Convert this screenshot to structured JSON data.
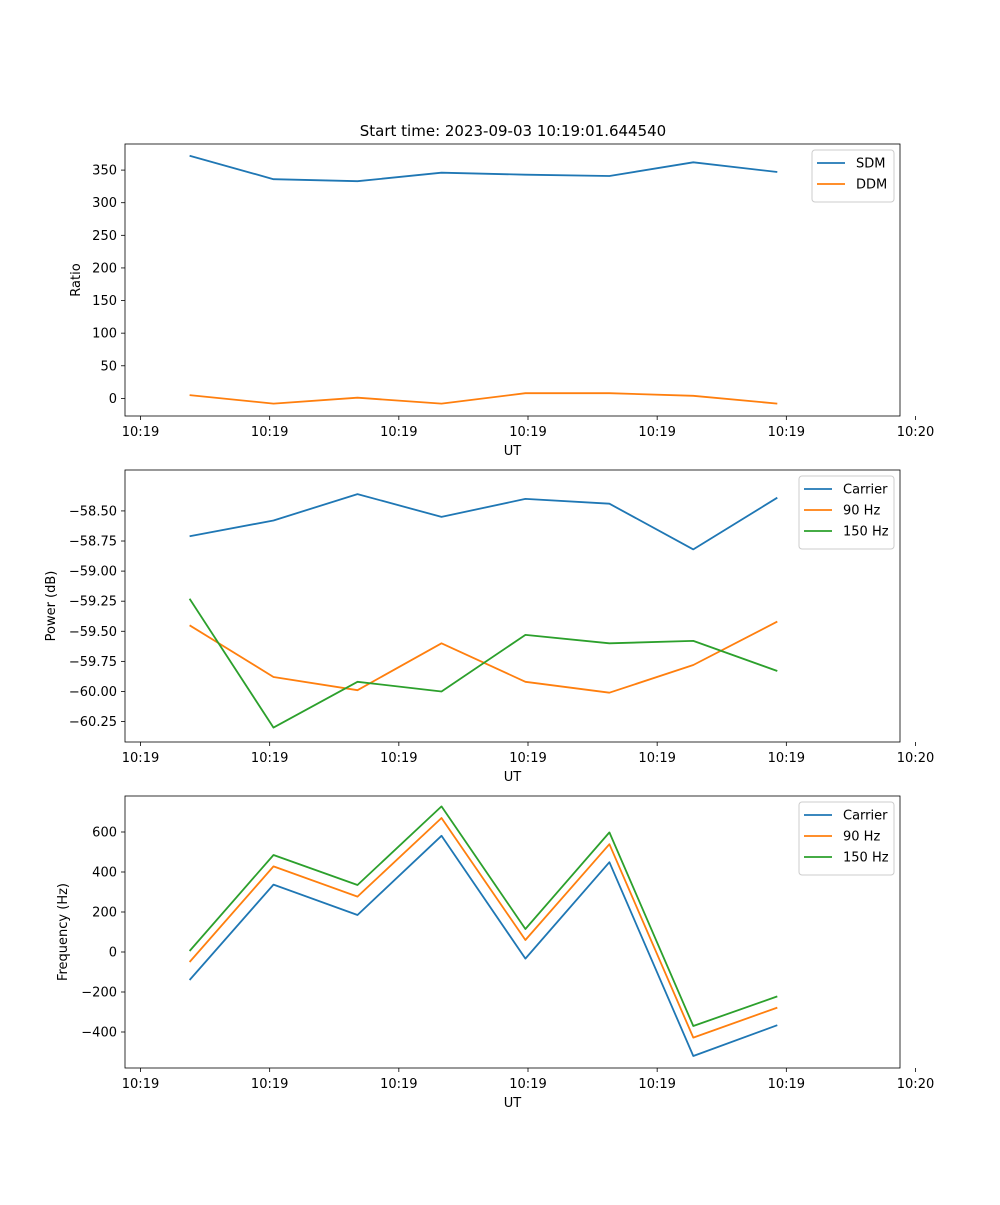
{
  "title": "Start time: 2023-09-03 10:19:01.644540",
  "colors": {
    "blue": "#1f77b4",
    "orange": "#ff7f0e",
    "green": "#2ca02c"
  },
  "chart_data": [
    {
      "type": "line",
      "xlabel": "UT",
      "ylabel": "Ratio",
      "xlim": [
        0,
        6
      ],
      "ylim": [
        -27,
        390
      ],
      "x": [
        0.5,
        1.15,
        1.8,
        2.45,
        3.1,
        3.75,
        4.4,
        5.05
      ],
      "x_ticks": [
        0.12,
        1.12,
        2.12,
        3.12,
        4.12,
        5.12,
        6.12
      ],
      "x_tick_labels": [
        "10:19",
        "10:19",
        "10:19",
        "10:19",
        "10:19",
        "10:19",
        "10:20"
      ],
      "y_ticks": [
        0,
        50,
        100,
        150,
        200,
        250,
        300,
        350
      ],
      "y_tick_labels": [
        "0",
        "50",
        "100",
        "150",
        "200",
        "250",
        "300",
        "350"
      ],
      "legend_position": "top-right",
      "series": [
        {
          "name": "SDM",
          "color": "#1f77b4",
          "values": [
            372,
            336,
            333,
            346,
            343,
            341,
            362,
            347
          ]
        },
        {
          "name": "DDM",
          "color": "#ff7f0e",
          "values": [
            5,
            -8,
            1,
            -8,
            8,
            8,
            4,
            -8
          ]
        }
      ]
    },
    {
      "type": "line",
      "xlabel": "UT",
      "ylabel": "Power (dB)",
      "xlim": [
        0,
        6
      ],
      "ylim": [
        -60.42,
        -58.16
      ],
      "x": [
        0.5,
        1.15,
        1.8,
        2.45,
        3.1,
        3.75,
        4.4,
        5.05
      ],
      "x_ticks": [
        0.12,
        1.12,
        2.12,
        3.12,
        4.12,
        5.12,
        6.12
      ],
      "x_tick_labels": [
        "10:19",
        "10:19",
        "10:19",
        "10:19",
        "10:19",
        "10:19",
        "10:20"
      ],
      "y_ticks": [
        -60.25,
        -60.0,
        -59.75,
        -59.5,
        -59.25,
        -59.0,
        -58.75,
        -58.5
      ],
      "y_tick_labels": [
        "−60.25",
        "−60.00",
        "−59.75",
        "−59.50",
        "−59.25",
        "−59.00",
        "−58.75",
        "−58.50"
      ],
      "legend_position": "top-right",
      "series": [
        {
          "name": "Carrier",
          "color": "#1f77b4",
          "values": [
            -58.71,
            -58.58,
            -58.36,
            -58.55,
            -58.4,
            -58.44,
            -58.82,
            -58.39
          ]
        },
        {
          "name": "90 Hz",
          "color": "#ff7f0e",
          "values": [
            -59.45,
            -59.88,
            -59.99,
            -59.6,
            -59.92,
            -60.01,
            -59.78,
            -59.42
          ]
        },
        {
          "name": "150 Hz",
          "color": "#2ca02c",
          "values": [
            -59.23,
            -60.3,
            -59.92,
            -60.0,
            -59.53,
            -59.6,
            -59.58,
            -59.83
          ]
        }
      ]
    },
    {
      "type": "line",
      "xlabel": "UT",
      "ylabel": "Frequency (Hz)",
      "xlim": [
        0,
        6
      ],
      "ylim": [
        -580,
        780
      ],
      "x": [
        0.5,
        1.15,
        1.8,
        2.45,
        3.1,
        3.75,
        4.4,
        5.05
      ],
      "x_ticks": [
        0.12,
        1.12,
        2.12,
        3.12,
        4.12,
        5.12,
        6.12
      ],
      "x_tick_labels": [
        "10:19",
        "10:19",
        "10:19",
        "10:19",
        "10:19",
        "10:19",
        "10:20"
      ],
      "y_ticks": [
        -400,
        -200,
        0,
        200,
        400,
        600
      ],
      "y_tick_labels": [
        "−400",
        "−200",
        "0",
        "200",
        "400",
        "600"
      ],
      "legend_position": "top-right",
      "series": [
        {
          "name": "Carrier",
          "color": "#1f77b4",
          "values": [
            -140,
            337,
            185,
            581,
            -33,
            449,
            -520,
            -366
          ]
        },
        {
          "name": "90 Hz",
          "color": "#ff7f0e",
          "values": [
            -50,
            428,
            277,
            670,
            60,
            539,
            -428,
            -278
          ]
        },
        {
          "name": "150 Hz",
          "color": "#2ca02c",
          "values": [
            5,
            485,
            335,
            728,
            115,
            598,
            -370,
            -222
          ]
        }
      ]
    }
  ]
}
